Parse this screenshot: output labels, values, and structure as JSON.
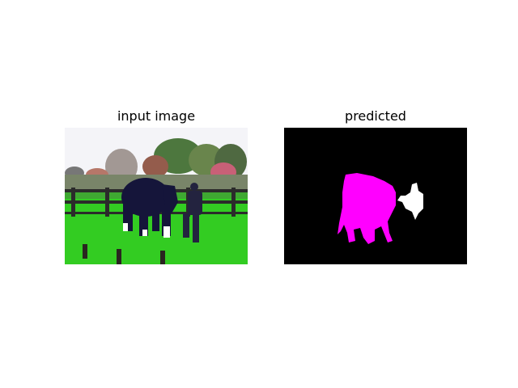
{
  "figure": {
    "panels": [
      {
        "title": "input image"
      },
      {
        "title": "predicted"
      }
    ],
    "colors": {
      "background": "#ffffff",
      "mask_background": "#000000",
      "horse_mask": "#ff00ff",
      "person_mask": "#ffffff",
      "grass": "#33cc22",
      "sky": "#f4f4f8",
      "fence": "#2b2b2b",
      "horse": "#15153a"
    }
  }
}
